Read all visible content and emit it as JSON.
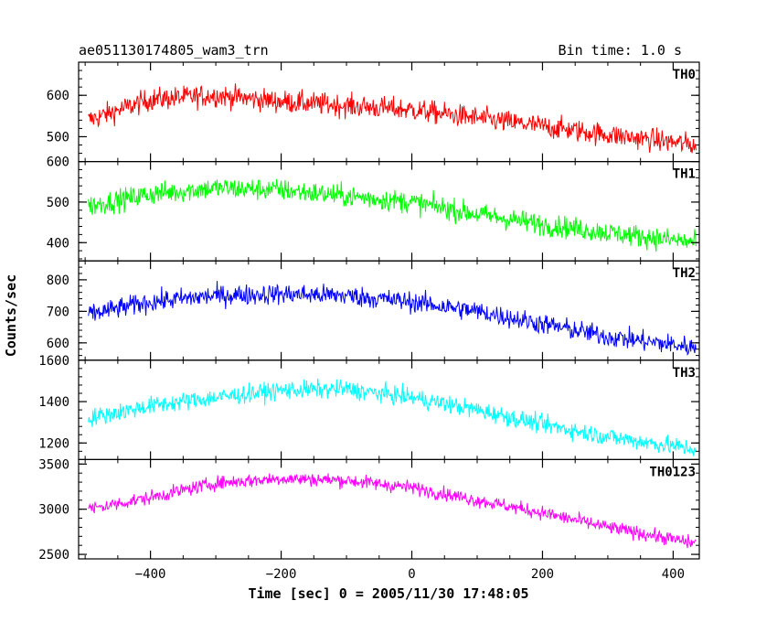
{
  "chart_data": {
    "type": "line",
    "title_left": "ae051130174805_wam3_trn",
    "title_right": "Bin time: 1.0 s",
    "xlabel": "Time [sec] 0 = 2005/11/30 17:48:05",
    "ylabel": "Counts/sec",
    "xlim": [
      -510,
      440
    ],
    "x_ticks": [
      -400,
      -200,
      0,
      200,
      400
    ],
    "x_tick_labels": [
      "−400",
      "−200",
      "0",
      "200",
      "400"
    ],
    "bin_time_s": 1.0,
    "panels": [
      {
        "name": "TH0",
        "color": "#ff0000",
        "ylim": [
          440,
          680
        ],
        "y_ticks": [
          500,
          600
        ],
        "y_tick_labels": [
          "500",
          "600"
        ],
        "trend": [
          [
            -495,
            540
          ],
          [
            -400,
            590
          ],
          [
            -300,
            600
          ],
          [
            -200,
            585
          ],
          [
            -100,
            575
          ],
          [
            0,
            565
          ],
          [
            100,
            545
          ],
          [
            200,
            525
          ],
          [
            300,
            505
          ],
          [
            435,
            480
          ]
        ],
        "noise": 25
      },
      {
        "name": "TH1",
        "color": "#00ff00",
        "ylim": [
          355,
          600
        ],
        "y_ticks": [
          400,
          500,
          600
        ],
        "y_tick_labels": [
          "400",
          "500",
          "600"
        ],
        "trend": [
          [
            -495,
            490
          ],
          [
            -400,
            520
          ],
          [
            -300,
            535
          ],
          [
            -200,
            530
          ],
          [
            -100,
            515
          ],
          [
            0,
            500
          ],
          [
            100,
            470
          ],
          [
            200,
            445
          ],
          [
            300,
            425
          ],
          [
            435,
            400
          ]
        ],
        "noise": 25
      },
      {
        "name": "TH2",
        "color": "#0000ff",
        "ylim": [
          545,
          860
        ],
        "y_ticks": [
          600,
          700,
          800
        ],
        "y_tick_labels": [
          "600",
          "700",
          "800"
        ],
        "trend": [
          [
            -495,
            690
          ],
          [
            -400,
            730
          ],
          [
            -300,
            750
          ],
          [
            -200,
            755
          ],
          [
            -100,
            750
          ],
          [
            0,
            730
          ],
          [
            100,
            700
          ],
          [
            200,
            660
          ],
          [
            300,
            620
          ],
          [
            435,
            585
          ]
        ],
        "noise": 30
      },
      {
        "name": "TH3",
        "color": "#00ffff",
        "ylim": [
          1120,
          1600
        ],
        "y_ticks": [
          1200,
          1400,
          1600
        ],
        "y_tick_labels": [
          "1200",
          "1400",
          "1600"
        ],
        "trend": [
          [
            -495,
            1320
          ],
          [
            -400,
            1380
          ],
          [
            -300,
            1420
          ],
          [
            -200,
            1455
          ],
          [
            -100,
            1460
          ],
          [
            0,
            1420
          ],
          [
            100,
            1360
          ],
          [
            200,
            1290
          ],
          [
            300,
            1230
          ],
          [
            435,
            1170
          ]
        ],
        "noise": 40
      },
      {
        "name": "TH0123",
        "color": "#ff00ff",
        "ylim": [
          2450,
          3550
        ],
        "y_ticks": [
          2500,
          3000,
          3500
        ],
        "y_tick_labels": [
          "2500",
          "3000",
          "3500"
        ],
        "trend": [
          [
            -495,
            3000
          ],
          [
            -400,
            3130
          ],
          [
            -300,
            3290
          ],
          [
            -200,
            3340
          ],
          [
            -100,
            3320
          ],
          [
            0,
            3240
          ],
          [
            100,
            3100
          ],
          [
            200,
            2960
          ],
          [
            300,
            2800
          ],
          [
            435,
            2620
          ]
        ],
        "noise": 70
      }
    ]
  }
}
